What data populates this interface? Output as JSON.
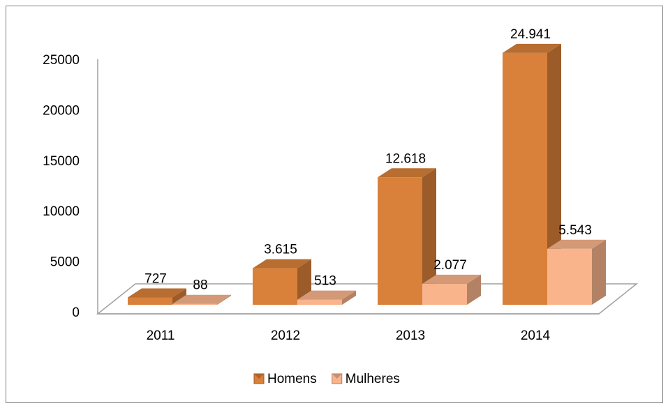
{
  "chart_data": {
    "type": "bar3d",
    "categories": [
      "2011",
      "2012",
      "2013",
      "2014"
    ],
    "series": [
      {
        "name": "Homens",
        "color": "#d9803a",
        "values": [
          727,
          3615,
          12618,
          24941
        ],
        "value_labels": [
          "727",
          "3.615",
          "12.618",
          "24.941"
        ]
      },
      {
        "name": "Mulheres",
        "color": "#f9b48c",
        "values": [
          88,
          513,
          2077,
          5543
        ],
        "value_labels": [
          "88",
          "513",
          "2.077",
          "5.543"
        ]
      }
    ],
    "ylim": [
      0,
      25000
    ],
    "yticks": [
      0,
      5000,
      10000,
      15000,
      20000,
      25000
    ],
    "grid": false,
    "legend": "bottom"
  }
}
